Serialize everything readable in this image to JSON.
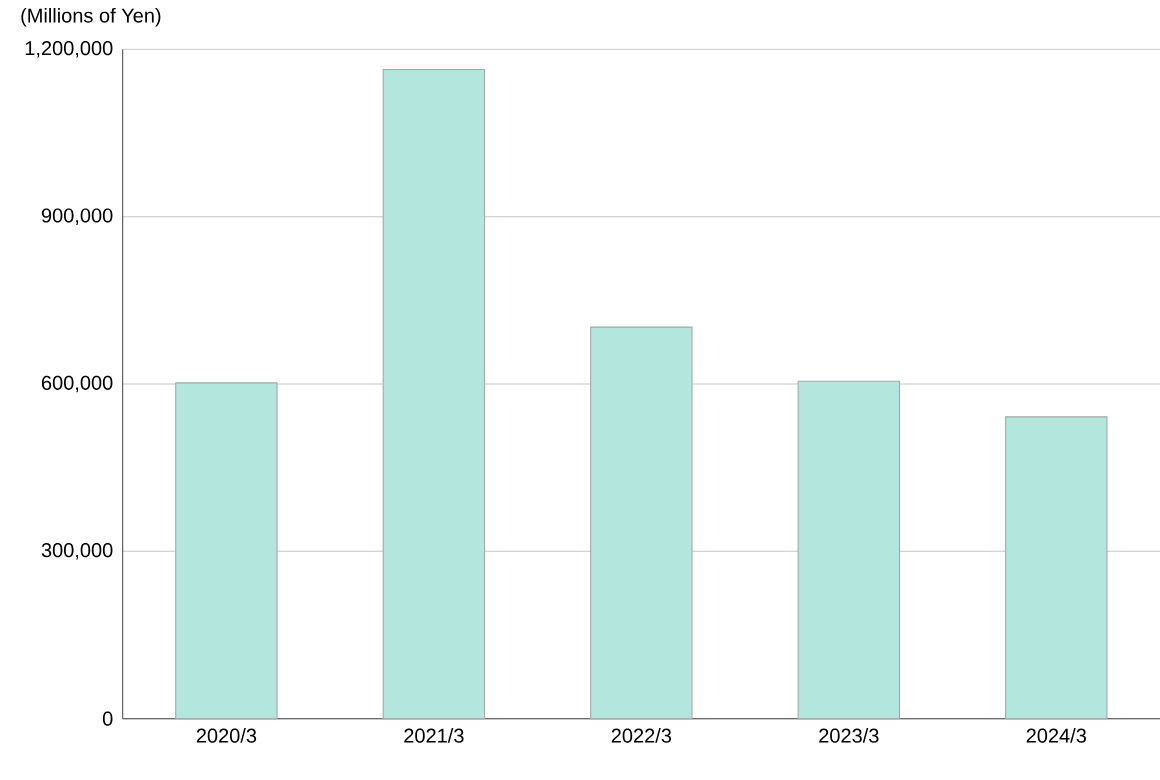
{
  "chart_data": {
    "type": "bar",
    "ylabel": "(Millions of Yen)",
    "categories": [
      "2020/3",
      "2021/3",
      "2022/3",
      "2023/3",
      "2024/3"
    ],
    "values": [
      602000,
      1164000,
      702000,
      605000,
      541000
    ],
    "color": "#b3e6dc",
    "ylim": [
      0,
      1200000
    ],
    "yticks": [
      {
        "value": 0,
        "label": "0"
      },
      {
        "value": 300000,
        "label": "300,000"
      },
      {
        "value": 600000,
        "label": "600,000"
      },
      {
        "value": 900000,
        "label": "900,000"
      },
      {
        "value": 1200000,
        "label": "1,200,000"
      }
    ],
    "grid": "y"
  }
}
